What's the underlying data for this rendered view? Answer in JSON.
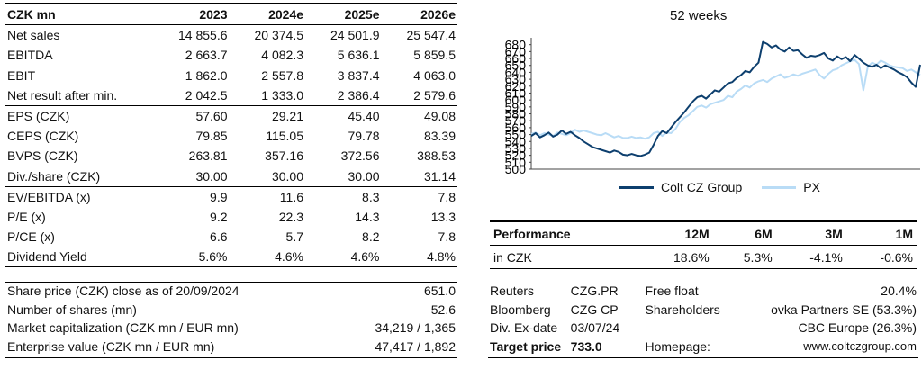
{
  "fin": {
    "header": [
      "CZK mn",
      "2023",
      "2024e",
      "2025e",
      "2026e"
    ],
    "rows": [
      [
        "Net sales",
        "14 855.6",
        "20 374.5",
        "24 501.9",
        "25 547.4"
      ],
      [
        "EBITDA",
        "2 663.7",
        "4 082.3",
        "5 636.1",
        "5 859.5"
      ],
      [
        "EBIT",
        "1 862.0",
        "2 557.8",
        "3 837.4",
        "4 063.0"
      ],
      [
        "Net result after min.",
        "2 042.5",
        "1 333.0",
        "2 386.4",
        "2 579.6"
      ],
      [
        "EPS (CZK)",
        "57.60",
        "29.21",
        "45.40",
        "49.08"
      ],
      [
        "CEPS (CZK)",
        "79.85",
        "115.05",
        "79.78",
        "83.39"
      ],
      [
        "BVPS (CZK)",
        "263.81",
        "357.16",
        "372.56",
        "388.53"
      ],
      [
        "Div./share (CZK)",
        "30.00",
        "30.00",
        "30.00",
        "31.14"
      ],
      [
        "EV/EBITDA (x)",
        "9.9",
        "11.6",
        "8.3",
        "7.8"
      ],
      [
        "P/E (x)",
        "9.2",
        "22.3",
        "14.3",
        "13.3"
      ],
      [
        "P/CE (x)",
        "6.6",
        "5.7",
        "8.2",
        "7.8"
      ],
      [
        "Dividend Yield",
        "5.6%",
        "4.6%",
        "4.6%",
        "4.8%"
      ]
    ]
  },
  "info": [
    [
      "Share price (CZK) close as of 20/09/2024",
      "651.0"
    ],
    [
      "Number of shares (mn)",
      "52.6"
    ],
    [
      "Market capitalization (CZK mn / EUR mn)",
      "34,219 / 1,365"
    ],
    [
      "Enterprise value (CZK mn / EUR mn)",
      "47,417 / 1,892"
    ]
  ],
  "chart_data": {
    "type": "line",
    "title": "52 weeks",
    "ylim": [
      500,
      690
    ],
    "yticks": [
      500,
      510,
      520,
      530,
      540,
      550,
      560,
      570,
      580,
      590,
      600,
      610,
      620,
      630,
      640,
      650,
      660,
      670,
      680
    ],
    "series": [
      {
        "name": "Colt CZ Group",
        "color": "#0d3f6e",
        "values": [
          548,
          552,
          546,
          549,
          553,
          547,
          550,
          556,
          551,
          554,
          549,
          545,
          540,
          536,
          532,
          530,
          528,
          526,
          524,
          527,
          525,
          521,
          520,
          522,
          520,
          519,
          521,
          524,
          535,
          548,
          555,
          552,
          560,
          568,
          575,
          582,
          590,
          598,
          604,
          606,
          602,
          608,
          614,
          612,
          618,
          624,
          626,
          632,
          636,
          642,
          640,
          648,
          654,
          684,
          681,
          676,
          679,
          673,
          670,
          676,
          671,
          672,
          666,
          661,
          664,
          663,
          665,
          668,
          660,
          657,
          663,
          659,
          662,
          656,
          665,
          660,
          654,
          650,
          648,
          651,
          646,
          650,
          647,
          644,
          640,
          637,
          633,
          625,
          619,
          651
        ]
      },
      {
        "name": "PX",
        "color": "#b9dcf6",
        "values": [
          551,
          553,
          549,
          552,
          550,
          548,
          553,
          551,
          549,
          552,
          557,
          554,
          556,
          554,
          552,
          550,
          549,
          552,
          549,
          546,
          548,
          545,
          545,
          547,
          545,
          546,
          544,
          546,
          552,
          554,
          548,
          553,
          552,
          558,
          568,
          574,
          578,
          584,
          590,
          592,
          589,
          594,
          596,
          598,
          600,
          606,
          604,
          612,
          616,
          621,
          618,
          624,
          627,
          629,
          626,
          631,
          634,
          637,
          632,
          634,
          637,
          635,
          638,
          640,
          642,
          644,
          636,
          631,
          638,
          643,
          645,
          650,
          653,
          656,
          658,
          652,
          614,
          648,
          654,
          651,
          657,
          654,
          650,
          648,
          647,
          646,
          642,
          644,
          640,
          636
        ]
      }
    ]
  },
  "legend": {
    "a": "Colt CZ Group",
    "b": "PX"
  },
  "perf": {
    "header": [
      "Performance",
      "12M",
      "6M",
      "3M",
      "1M"
    ],
    "row": [
      "in CZK",
      "18.6%",
      "5.3%",
      "-4.1%",
      "-0.6%"
    ]
  },
  "rinfo": [
    [
      "Reuters",
      "CZG.PR",
      "Free float",
      "20.4%"
    ],
    [
      "Bloomberg",
      "CZG CP",
      "Shareholders",
      "ovka Partners SE (53.3%)"
    ],
    [
      "Div. Ex-date",
      "03/07/24",
      "",
      "CBC Europe (26.3%)"
    ],
    [
      "Target price",
      "733.0",
      "Homepage:",
      "www.coltczgroup.com"
    ]
  ]
}
